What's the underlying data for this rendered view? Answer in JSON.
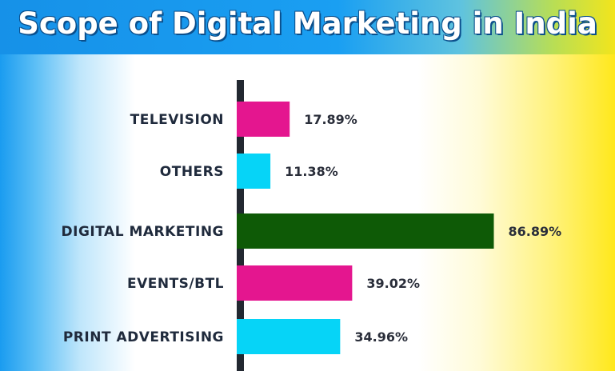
{
  "title": "Scope of Digital Marketing in India",
  "chart_data": {
    "type": "bar",
    "orientation": "horizontal",
    "categories": [
      "TELEVISION",
      "OTHERS",
      "DIGITAL MARKETING",
      "EVENTS/BTL",
      "PRINT ADVERTISING"
    ],
    "values": [
      17.89,
      11.38,
      86.89,
      39.02,
      34.96
    ],
    "value_labels": [
      "17.89%",
      "11.38%",
      "86.89%",
      "39.02%",
      "34.96%"
    ],
    "bar_colors": [
      "#e4168f",
      "#06d4f7",
      "#0e5a06",
      "#e4168f",
      "#06d4f7"
    ],
    "xlim": [
      0,
      100
    ],
    "grid": false,
    "legend": "none"
  }
}
